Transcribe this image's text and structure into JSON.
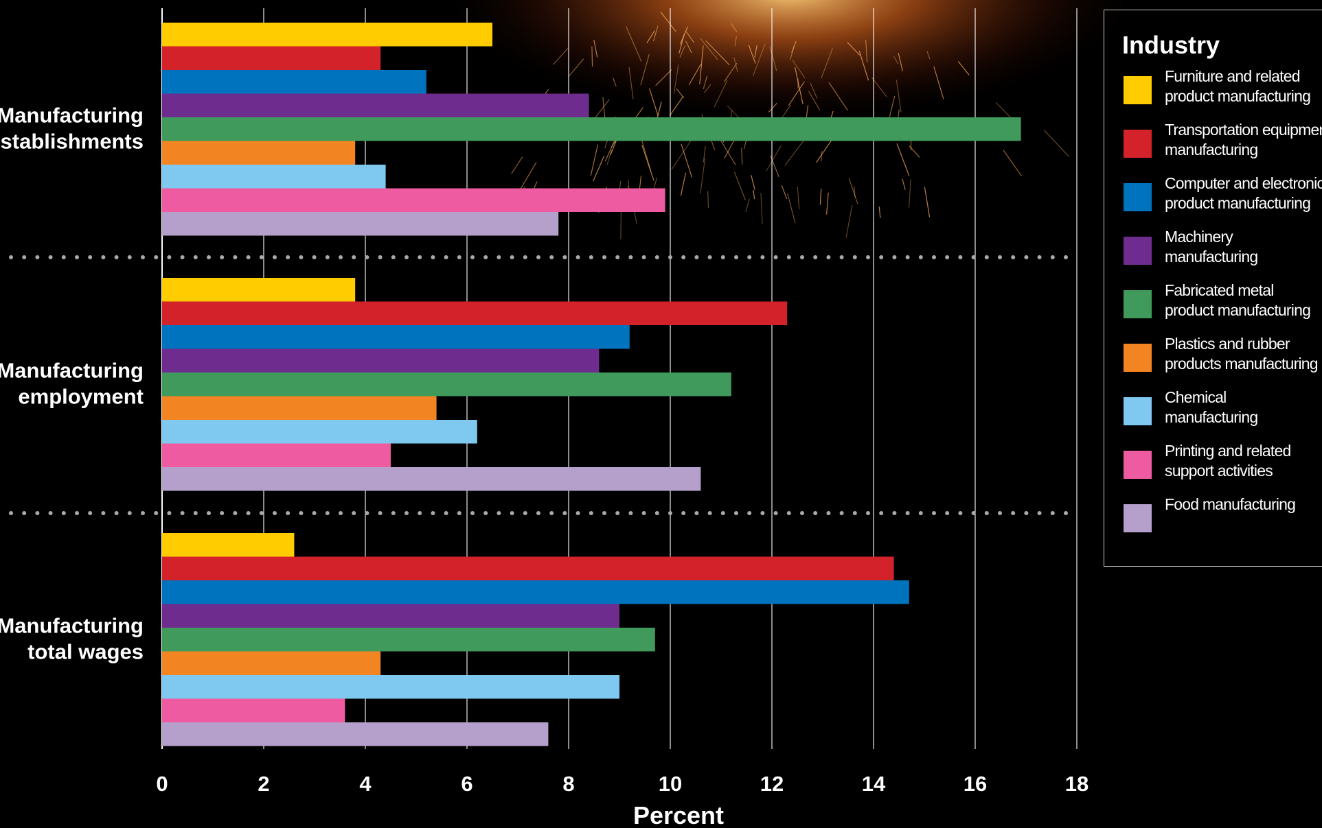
{
  "chart_data": {
    "type": "bar",
    "orientation": "horizontal",
    "xlabel": "Percent",
    "xlim": [
      0,
      18
    ],
    "xticks": [
      0,
      2,
      4,
      6,
      8,
      10,
      12,
      14,
      16,
      18
    ],
    "grid": "vertical",
    "legend_title": "Industry",
    "legend_placement": "right",
    "groups": [
      "Manufacturing establishments",
      "Manufacturing employment",
      "Manufacturing total wages"
    ],
    "series": [
      {
        "name": "Furniture and related product manufacturing",
        "color": "#FFCC00",
        "values": [
          6.5,
          3.8,
          2.6
        ]
      },
      {
        "name": "Transportation equipment manufacturing",
        "color": "#D3222A",
        "values": [
          4.3,
          12.3,
          14.4
        ]
      },
      {
        "name": "Computer and electronic product manufacturing",
        "color": "#0073BE",
        "values": [
          5.2,
          9.2,
          14.7
        ]
      },
      {
        "name": "Machinery manufacturing",
        "color": "#6E2C8E",
        "values": [
          8.4,
          8.6,
          9.0
        ]
      },
      {
        "name": "Fabricated metal product manufacturing",
        "color": "#3F9A5C",
        "values": [
          16.9,
          11.2,
          9.7
        ]
      },
      {
        "name": "Plastics and rubber products manufacturing",
        "color": "#F38422",
        "values": [
          3.8,
          5.4,
          4.3
        ]
      },
      {
        "name": "Chemical manufacturing",
        "color": "#7FC8F0",
        "values": [
          4.4,
          6.2,
          9.0
        ]
      },
      {
        "name": "Printing and related support activities",
        "color": "#EE5BA0",
        "values": [
          9.9,
          4.5,
          3.6
        ]
      },
      {
        "name": "Food manufacturing",
        "color": "#B5A0CB",
        "values": [
          7.8,
          10.6,
          7.6
        ]
      }
    ]
  },
  "groups_display": [
    [
      "Manufacturing",
      "establishments"
    ],
    [
      "Manufacturing",
      "employment"
    ],
    [
      "Manufacturing",
      "total wages"
    ]
  ],
  "legend_lines": [
    [
      "Furniture and related",
      "product manufacturing"
    ],
    [
      "Transportation equipment",
      "manufacturing"
    ],
    [
      "Computer and electronic",
      "product manufacturing"
    ],
    [
      "Machinery",
      "manufacturing"
    ],
    [
      "Fabricated metal",
      "product manufacturing"
    ],
    [
      "Plastics and rubber",
      "products manufacturing"
    ],
    [
      "Chemical",
      "manufacturing"
    ],
    [
      "Printing and related",
      "support activities"
    ],
    [
      "Food manufacturing"
    ]
  ],
  "colors": {
    "background": "#000000",
    "grid": "#FFFFFF",
    "separator_dots": "#AAAAAA",
    "glow": "#C8501A"
  }
}
